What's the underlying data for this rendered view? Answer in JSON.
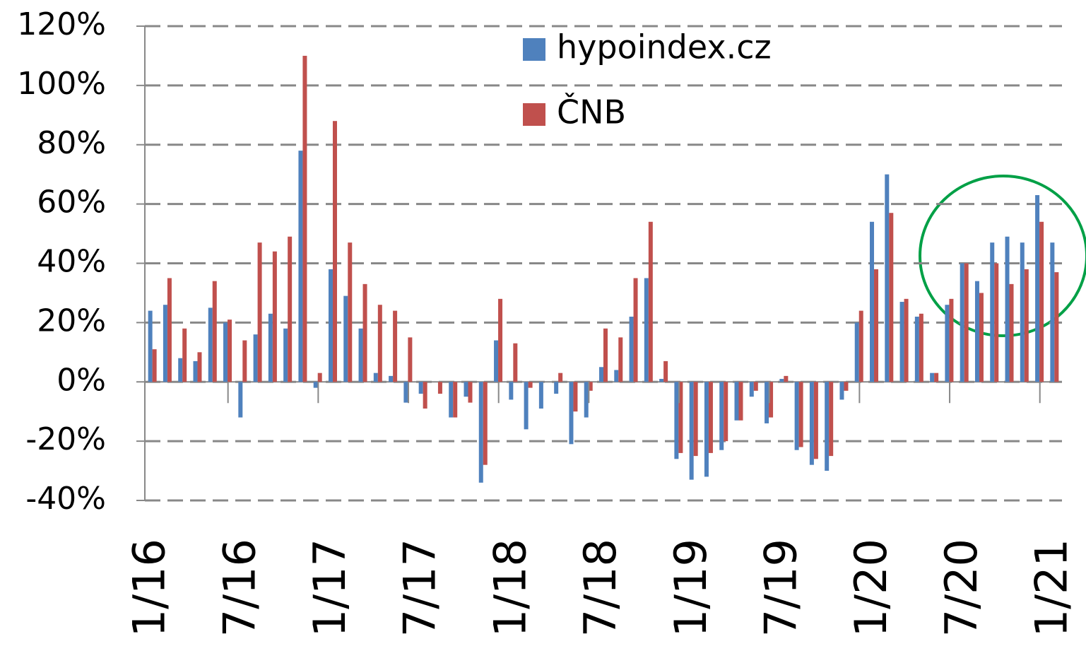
{
  "chart_data": {
    "type": "bar",
    "categories": [
      "1/16",
      null,
      null,
      null,
      null,
      null,
      "7/16",
      null,
      null,
      null,
      null,
      null,
      "1/17",
      null,
      null,
      null,
      null,
      null,
      "7/17",
      null,
      null,
      null,
      null,
      null,
      "1/18",
      null,
      null,
      null,
      null,
      null,
      "7/18",
      null,
      null,
      null,
      null,
      null,
      "1/19",
      null,
      null,
      null,
      null,
      null,
      "7/19",
      null,
      null,
      null,
      null,
      null,
      "1/20",
      null,
      null,
      null,
      null,
      null,
      "7/20",
      null,
      null,
      null,
      null,
      null,
      "1/21"
    ],
    "series": [
      {
        "name": "hypoindex.cz",
        "color": "#4f81bd",
        "values": [
          24,
          26,
          8,
          7,
          25,
          20,
          -12,
          16,
          23,
          18,
          78,
          -2,
          38,
          29,
          18,
          3,
          2,
          -7,
          -4,
          0,
          -12,
          -5,
          -34,
          14,
          -6,
          -16,
          -9,
          -4,
          -21,
          -12,
          5,
          4,
          22,
          35,
          1,
          -26,
          -33,
          -32,
          -23,
          -13,
          -5,
          -14,
          1,
          -23,
          -28,
          -30,
          -6,
          20,
          54,
          70,
          27,
          22,
          3,
          26,
          40,
          34,
          47,
          49,
          47,
          63,
          47
        ]
      },
      {
        "name": "ČNB",
        "color": "#c0504d",
        "values": [
          11,
          35,
          18,
          10,
          34,
          21,
          14,
          47,
          44,
          49,
          110,
          3,
          88,
          47,
          33,
          26,
          24,
          15,
          -9,
          -4,
          -12,
          -7,
          -28,
          28,
          13,
          -2,
          0,
          3,
          -10,
          -3,
          18,
          15,
          35,
          54,
          7,
          -24,
          -25,
          -24,
          -20,
          -13,
          -3,
          -12,
          2,
          -22,
          -26,
          -25,
          -3,
          24,
          38,
          57,
          28,
          23,
          3,
          28,
          40,
          30,
          40,
          33,
          38,
          54,
          37
        ]
      }
    ],
    "ylim": [
      -40,
      120
    ],
    "yticks": [
      {
        "value": -40,
        "label": "-40%"
      },
      {
        "value": -20,
        "label": "-20%"
      },
      {
        "value": 0,
        "label": "0%"
      },
      {
        "value": 20,
        "label": "20%"
      },
      {
        "value": 40,
        "label": "40%"
      },
      {
        "value": 60,
        "label": "60%"
      },
      {
        "value": 80,
        "label": "80%"
      },
      {
        "value": 100,
        "label": "100%"
      },
      {
        "value": 120,
        "label": "120%"
      }
    ],
    "grid": true,
    "legend": "top"
  }
}
